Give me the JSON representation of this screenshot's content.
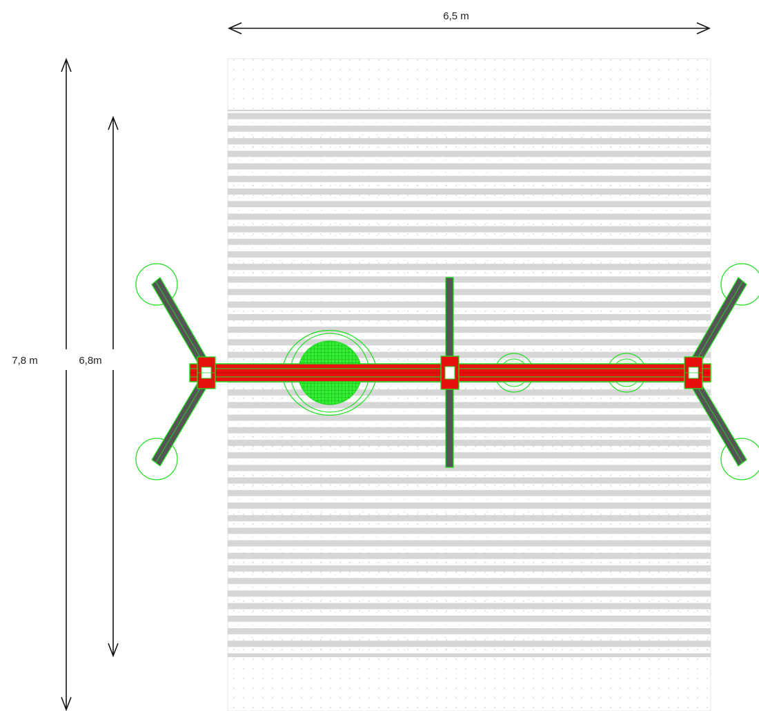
{
  "dimensions": {
    "width_label": "6,5 m",
    "total_depth_label": "7,8 m",
    "safety_zone_depth_label": "6,8m"
  },
  "colors": {
    "beam": "#e8100f",
    "outline": "#22dd22",
    "post": "#555555",
    "stripe": "#d6d6d6",
    "dot": "#bdbdbd",
    "dimension_line": "#111111"
  },
  "icons": {
    "arrow": "open-arrowhead",
    "footing": "circle-outline",
    "seat": "circle-grid"
  }
}
